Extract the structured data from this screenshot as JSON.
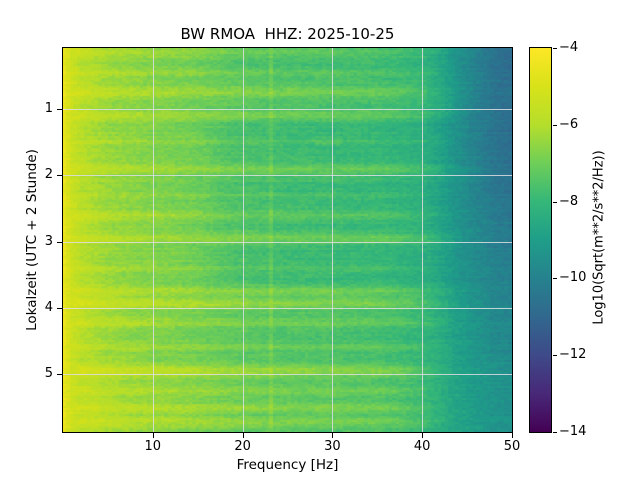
{
  "figure": {
    "title": "BW RMOA  HHZ: 2025-10-25",
    "background_color": "#ffffff",
    "grid_color": "#dedee4"
  },
  "chart_data": {
    "type": "heatmap",
    "subtype": "spectrogram",
    "title": "BW RMOA  HHZ: 2025-10-25",
    "xlabel": "Frequency [Hz]",
    "ylabel": "Lokalzeit (UTC + 2 Stunde)",
    "xlim": [
      0,
      50
    ],
    "ylim_hours": [
      0.08,
      5.87
    ],
    "x_ticks": [
      10,
      20,
      30,
      40,
      50
    ],
    "y_ticks": [
      1,
      2,
      3,
      4,
      5
    ],
    "grid": true,
    "colormap": "viridis",
    "colorbar": {
      "label": "Log10(Sqrt(m**2/s**2/Hz))",
      "tick_labels": [
        "−4",
        "−6",
        "−8",
        "−10",
        "−12",
        "−14"
      ],
      "tick_values": [
        -4,
        -6,
        -8,
        -10,
        -12,
        -14
      ],
      "vmin": -14,
      "vmax": -4
    },
    "viridis_stops": [
      "#440154",
      "#482878",
      "#3e4a89",
      "#31688e",
      "#26828e",
      "#1f9e89",
      "#35b779",
      "#6ece58",
      "#b5de2b",
      "#d8e219",
      "#fde725"
    ],
    "base_profile": {
      "freq_hz": [
        0,
        0.4,
        1,
        2,
        5,
        10,
        15,
        20,
        25,
        30,
        35,
        40,
        42,
        44,
        46,
        48,
        50
      ],
      "log10_value": [
        -4.35,
        -4.8,
        -5.4,
        -5.9,
        -6.4,
        -6.75,
        -7.0,
        -7.3,
        -7.5,
        -7.6,
        -7.7,
        -8.0,
        -8.4,
        -9.0,
        -9.5,
        -9.9,
        -10.1
      ]
    },
    "rolloff_adjust": {
      "hours": [
        0,
        2,
        3.5,
        5,
        5.87
      ],
      "value": [
        -0.7,
        -0.5,
        0.0,
        0.5,
        0.7
      ]
    },
    "bright_bands": [
      [
        0.15,
        0.05,
        0.45
      ],
      [
        0.45,
        0.04,
        0.35
      ],
      [
        0.75,
        0.06,
        0.6
      ],
      [
        1.1,
        0.05,
        0.55
      ],
      [
        1.5,
        0.03,
        0.3
      ],
      [
        1.9,
        0.05,
        0.5
      ],
      [
        2.3,
        0.03,
        0.3
      ],
      [
        2.6,
        0.05,
        0.55
      ],
      [
        2.95,
        0.05,
        0.55
      ],
      [
        3.4,
        0.03,
        0.3
      ],
      [
        3.75,
        0.05,
        0.6
      ],
      [
        3.93,
        0.06,
        0.85
      ],
      [
        4.22,
        0.05,
        0.55
      ],
      [
        4.6,
        0.04,
        0.4
      ],
      [
        4.95,
        0.06,
        0.8
      ],
      [
        5.25,
        0.04,
        0.5
      ],
      [
        5.5,
        0.05,
        0.65
      ],
      [
        5.72,
        0.05,
        0.6
      ]
    ],
    "quiet_zones": [
      [
        1.15,
        1.85,
        -0.3
      ],
      [
        2.05,
        2.85,
        -0.3
      ],
      [
        3.05,
        3.65,
        -0.3
      ],
      [
        0.0,
        0.55,
        -0.15
      ]
    ],
    "bright_zone_late": [
      4.8,
      5.87,
      0.2
    ],
    "spectral_line_hz": 23.3
  }
}
